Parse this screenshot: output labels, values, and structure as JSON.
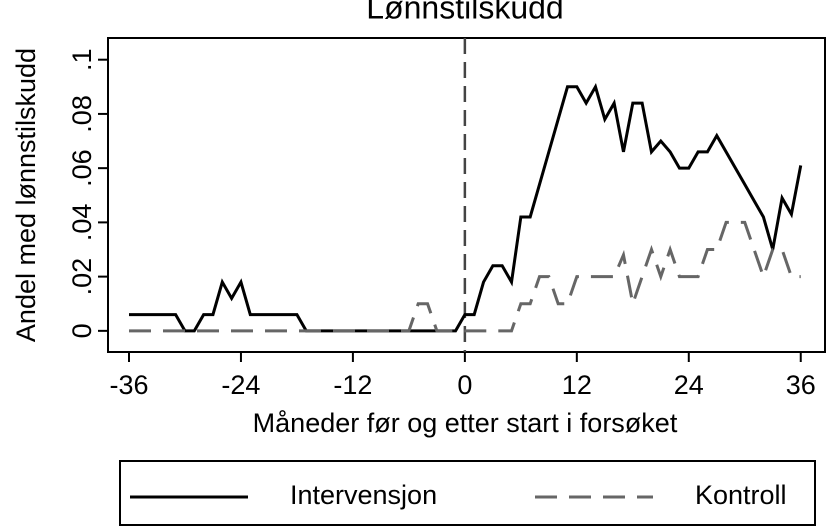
{
  "chart_data": {
    "type": "line",
    "title": "Lønnstilskudd",
    "x_label": "Måneder før og etter start i forsøket",
    "y_label": "Andel med lønnstilskudd",
    "x": [
      -36,
      -35,
      -34,
      -33,
      -32,
      -31,
      -30,
      -29,
      -28,
      -27,
      -26,
      -25,
      -24,
      -23,
      -22,
      -21,
      -20,
      -19,
      -18,
      -17,
      -16,
      -15,
      -14,
      -13,
      -12,
      -11,
      -10,
      -9,
      -8,
      -7,
      -6,
      -5,
      -4,
      -3,
      -2,
      -1,
      0,
      1,
      2,
      3,
      4,
      5,
      6,
      7,
      8,
      9,
      10,
      11,
      12,
      13,
      14,
      15,
      16,
      17,
      18,
      19,
      20,
      21,
      22,
      23,
      24,
      25,
      26,
      27,
      28,
      29,
      30,
      31,
      32,
      33,
      34,
      35,
      36
    ],
    "series": [
      {
        "name": "Intervensjon",
        "color": "#000000",
        "dash": "solid",
        "values": [
          0.006,
          0.006,
          0.006,
          0.006,
          0.006,
          0.006,
          0,
          0,
          0.006,
          0.006,
          0.018,
          0.012,
          0.018,
          0.006,
          0.006,
          0.006,
          0.006,
          0.006,
          0.006,
          0,
          0,
          0,
          0,
          0,
          0,
          0,
          0,
          0,
          0,
          0,
          0,
          0,
          0,
          0,
          0,
          0,
          0.006,
          0.006,
          0.018,
          0.024,
          0.024,
          0.018,
          0.042,
          0.042,
          0.054,
          0.066,
          0.078,
          0.09,
          0.09,
          0.084,
          0.09,
          0.078,
          0.084,
          0.066,
          0.084,
          0.084,
          0.066,
          0.07,
          0.066,
          0.06,
          0.06,
          0.066,
          0.066,
          0.072,
          0.066,
          0.06,
          0.054,
          0.048,
          0.042,
          0.03,
          0.049,
          0.043,
          0.061
        ]
      },
      {
        "name": "Kontroll",
        "color": "#666666",
        "dash": "dashed",
        "values": [
          0,
          0,
          0,
          0,
          0,
          0,
          0,
          0,
          0,
          0,
          0,
          0,
          0,
          0,
          0,
          0,
          0,
          0,
          0,
          0,
          0,
          0,
          0,
          0,
          0,
          0,
          0,
          0,
          0,
          0,
          0,
          0.01,
          0.01,
          0,
          0,
          0,
          0,
          0,
          0,
          0,
          0,
          0,
          0.01,
          0.01,
          0.02,
          0.02,
          0.01,
          0.01,
          0.02,
          0.02,
          0.02,
          0.02,
          0.02,
          0.028,
          0.01,
          0.02,
          0.03,
          0.02,
          0.03,
          0.02,
          0.02,
          0.02,
          0.03,
          0.03,
          0.04,
          0.04,
          0.04,
          0.03,
          0.02,
          0.03,
          0.03,
          0.02,
          0.02
        ]
      }
    ],
    "vline": 0,
    "xlim": [
      -38.25,
      38.6
    ],
    "xticks": [
      -36,
      -24,
      -12,
      0,
      12,
      24,
      36
    ],
    "ylim": [
      -0.0078,
      0.108
    ],
    "yticks": [
      0,
      {
        "value": 0.02,
        "label": ".02"
      },
      {
        "value": 0.04,
        "label": ".04"
      },
      {
        "value": 0.06,
        "label": ".06"
      },
      {
        "value": 0.08,
        "label": ".08"
      },
      {
        "value": 0.1,
        "label": ".1"
      }
    ],
    "legend": "bottom"
  }
}
